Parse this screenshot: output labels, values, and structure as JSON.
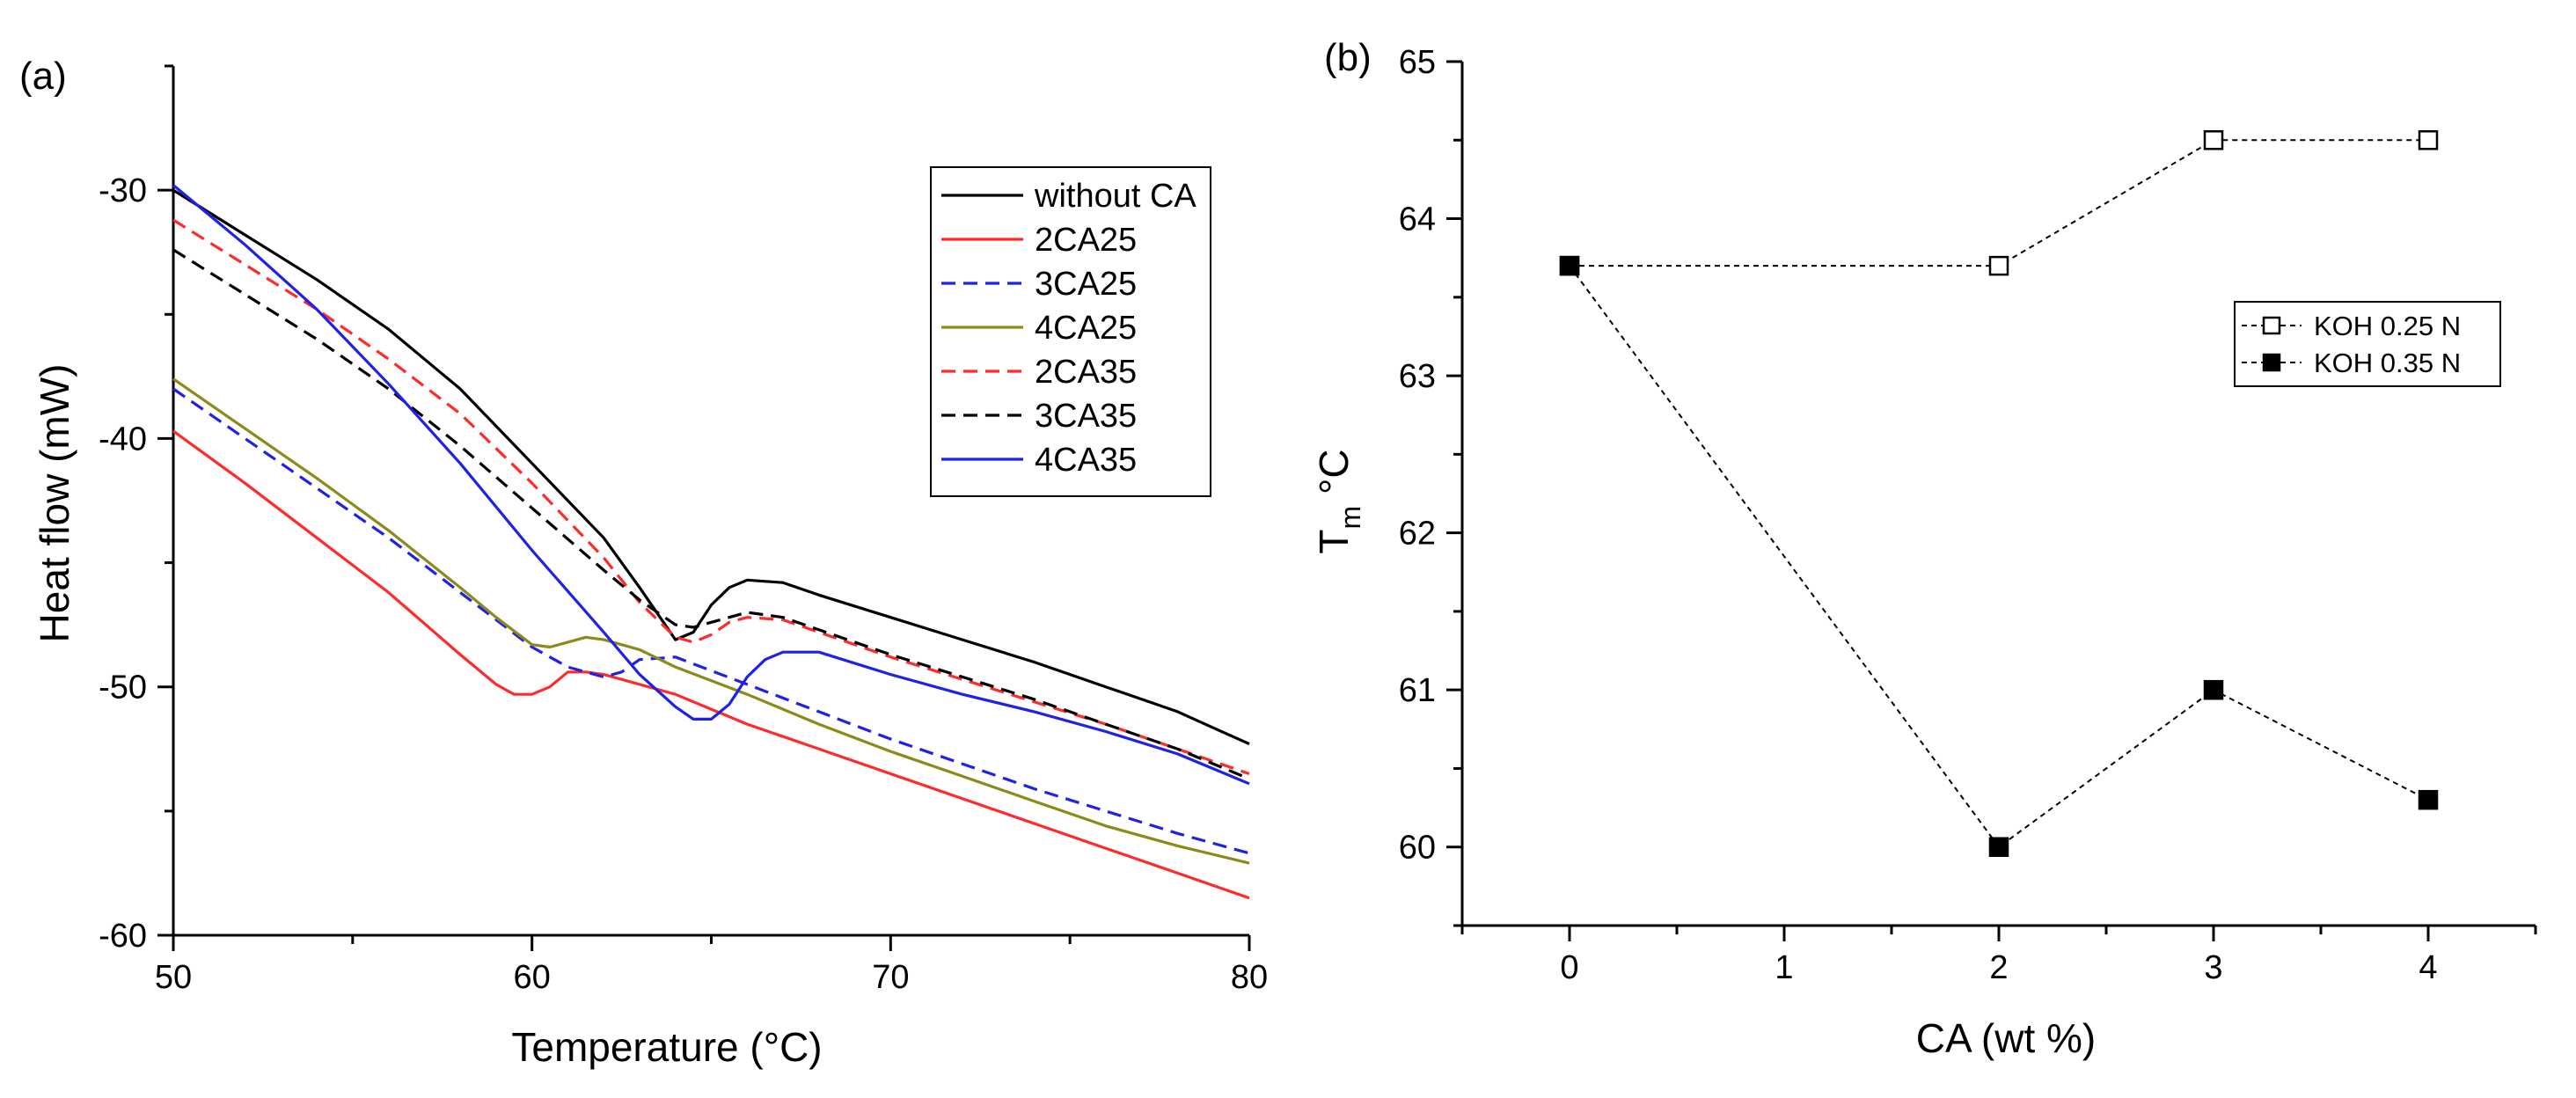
{
  "chart_data": [
    {
      "panel": "(a)",
      "type": "line",
      "title": "",
      "xlabel": "Temperature (°C)",
      "ylabel": "Heat flow (mW)",
      "xlim": [
        50,
        80
      ],
      "ylim": [
        -60,
        -25
      ],
      "xticks": [
        50,
        60,
        70,
        80
      ],
      "yticks": [
        -60,
        -50,
        -40,
        -30
      ],
      "xtick_labels": [
        "50",
        "60",
        "70",
        "80"
      ],
      "ytick_labels": [
        "-60",
        "-50",
        "-40",
        "-30"
      ],
      "legend_position": "top-right",
      "series": [
        {
          "name": "without CA",
          "color": "#000000",
          "dash": "solid",
          "points": [
            [
              50,
              -30
            ],
            [
              52,
              -31.8
            ],
            [
              54,
              -33.6
            ],
            [
              56,
              -35.6
            ],
            [
              58,
              -38
            ],
            [
              60,
              -41
            ],
            [
              62,
              -44
            ],
            [
              63,
              -46
            ],
            [
              64,
              -48.1
            ],
            [
              64.5,
              -47.8
            ],
            [
              65,
              -46.7
            ],
            [
              65.5,
              -46
            ],
            [
              66,
              -45.7
            ],
            [
              67,
              -45.8
            ],
            [
              68,
              -46.3
            ],
            [
              70,
              -47.2
            ],
            [
              72,
              -48.1
            ],
            [
              74,
              -49
            ],
            [
              76,
              -50
            ],
            [
              78,
              -51
            ],
            [
              80,
              -52.3
            ]
          ]
        },
        {
          "name": "2CA25",
          "color": "#ff2a2a",
          "dash": "solid",
          "points": [
            [
              50,
              -39.7
            ],
            [
              52,
              -41.8
            ],
            [
              54,
              -44
            ],
            [
              56,
              -46.2
            ],
            [
              58,
              -48.7
            ],
            [
              59,
              -49.9
            ],
            [
              59.5,
              -50.3
            ],
            [
              60,
              -50.3
            ],
            [
              60.5,
              -50
            ],
            [
              61,
              -49.4
            ],
            [
              61.5,
              -49.4
            ],
            [
              62,
              -49.5
            ],
            [
              64,
              -50.3
            ],
            [
              66,
              -51.5
            ],
            [
              68,
              -52.5
            ],
            [
              70,
              -53.5
            ],
            [
              72,
              -54.5
            ],
            [
              74,
              -55.5
            ],
            [
              76,
              -56.5
            ],
            [
              78,
              -57.5
            ],
            [
              80,
              -58.5
            ]
          ]
        },
        {
          "name": "3CA25",
          "color": "#1f22e6",
          "dash": "dashed",
          "points": [
            [
              50,
              -38
            ],
            [
              52,
              -40
            ],
            [
              54,
              -42
            ],
            [
              56,
              -44
            ],
            [
              58,
              -46.2
            ],
            [
              60,
              -48.4
            ],
            [
              61,
              -49.2
            ],
            [
              62,
              -49.6
            ],
            [
              62.5,
              -49.4
            ],
            [
              63,
              -48.9
            ],
            [
              64,
              -48.8
            ],
            [
              66,
              -49.9
            ],
            [
              68,
              -51
            ],
            [
              70,
              -52.1
            ],
            [
              72,
              -53.1
            ],
            [
              74,
              -54.1
            ],
            [
              76,
              -55
            ],
            [
              78,
              -55.9
            ],
            [
              80,
              -56.7
            ]
          ]
        },
        {
          "name": "4CA25",
          "color": "#8c8a1a",
          "dash": "solid",
          "points": [
            [
              50,
              -37.6
            ],
            [
              52,
              -39.6
            ],
            [
              54,
              -41.6
            ],
            [
              56,
              -43.7
            ],
            [
              58,
              -46
            ],
            [
              59,
              -47.2
            ],
            [
              60,
              -48.3
            ],
            [
              60.5,
              -48.4
            ],
            [
              61,
              -48.2
            ],
            [
              61.5,
              -48
            ],
            [
              62,
              -48.1
            ],
            [
              63,
              -48.5
            ],
            [
              64,
              -49.2
            ],
            [
              66,
              -50.3
            ],
            [
              68,
              -51.5
            ],
            [
              70,
              -52.6
            ],
            [
              72,
              -53.6
            ],
            [
              74,
              -54.6
            ],
            [
              76,
              -55.6
            ],
            [
              78,
              -56.4
            ],
            [
              80,
              -57.1
            ]
          ]
        },
        {
          "name": "2CA35",
          "color": "#ff2a2a",
          "dash": "dashed",
          "points": [
            [
              50,
              -31.2
            ],
            [
              52,
              -33
            ],
            [
              54,
              -34.8
            ],
            [
              56,
              -36.8
            ],
            [
              58,
              -39
            ],
            [
              60,
              -41.8
            ],
            [
              62,
              -44.8
            ],
            [
              63,
              -46.6
            ],
            [
              64,
              -48
            ],
            [
              64.5,
              -48.2
            ],
            [
              65,
              -47.9
            ],
            [
              65.5,
              -47.4
            ],
            [
              66,
              -47.2
            ],
            [
              67,
              -47.3
            ],
            [
              68,
              -47.8
            ],
            [
              70,
              -48.8
            ],
            [
              72,
              -49.7
            ],
            [
              74,
              -50.6
            ],
            [
              76,
              -51.5
            ],
            [
              78,
              -52.5
            ],
            [
              80,
              -53.5
            ]
          ]
        },
        {
          "name": "3CA35",
          "color": "#000000",
          "dash": "dashed",
          "points": [
            [
              50,
              -32.4
            ],
            [
              52,
              -34.2
            ],
            [
              54,
              -36
            ],
            [
              56,
              -38
            ],
            [
              58,
              -40.3
            ],
            [
              60,
              -42.8
            ],
            [
              62,
              -45.3
            ],
            [
              63,
              -46.5
            ],
            [
              64,
              -47.5
            ],
            [
              64.5,
              -47.6
            ],
            [
              65,
              -47.4
            ],
            [
              65.5,
              -47.2
            ],
            [
              66,
              -47
            ],
            [
              67,
              -47.2
            ],
            [
              68,
              -47.7
            ],
            [
              70,
              -48.7
            ],
            [
              72,
              -49.6
            ],
            [
              74,
              -50.5
            ],
            [
              76,
              -51.5
            ],
            [
              78,
              -52.5
            ],
            [
              80,
              -53.7
            ]
          ]
        },
        {
          "name": "4CA35",
          "color": "#1f22e6",
          "dash": "solid",
          "points": [
            [
              50,
              -29.8
            ],
            [
              52,
              -32.2
            ],
            [
              54,
              -34.8
            ],
            [
              56,
              -37.8
            ],
            [
              58,
              -41
            ],
            [
              60,
              -44.5
            ],
            [
              62,
              -47.8
            ],
            [
              63,
              -49.5
            ],
            [
              64,
              -50.8
            ],
            [
              64.5,
              -51.3
            ],
            [
              65,
              -51.3
            ],
            [
              65.5,
              -50.7
            ],
            [
              66,
              -49.6
            ],
            [
              66.5,
              -48.9
            ],
            [
              67,
              -48.6
            ],
            [
              68,
              -48.6
            ],
            [
              70,
              -49.5
            ],
            [
              72,
              -50.3
            ],
            [
              74,
              -51
            ],
            [
              76,
              -51.8
            ],
            [
              78,
              -52.7
            ],
            [
              80,
              -53.9
            ]
          ]
        }
      ]
    },
    {
      "panel": "(b)",
      "type": "line",
      "title": "",
      "xlabel": "CA (wt %)",
      "ylabel_main": "T",
      "ylabel_sub": "m",
      "ylabel_unit": " °C",
      "xlim": [
        -0.5,
        4.5
      ],
      "ylim": [
        59.5,
        65
      ],
      "xticks": [
        0,
        1,
        2,
        3,
        4
      ],
      "yticks": [
        60,
        61,
        62,
        63,
        64,
        65
      ],
      "xtick_labels": [
        "0",
        "1",
        "2",
        "3",
        "4"
      ],
      "ytick_labels": [
        "60",
        "61",
        "62",
        "63",
        "64",
        "65"
      ],
      "legend_position": "right",
      "series": [
        {
          "name": "KOH 0.25 N",
          "marker": "open-square",
          "color": "#000000",
          "x": [
            0,
            2,
            3,
            4
          ],
          "values": [
            63.7,
            63.7,
            64.5,
            64.5
          ]
        },
        {
          "name": "KOH 0.35 N",
          "marker": "filled-square",
          "color": "#000000",
          "x": [
            0,
            2,
            3,
            4
          ],
          "values": [
            63.7,
            60.0,
            61.0,
            60.3
          ]
        }
      ]
    }
  ]
}
